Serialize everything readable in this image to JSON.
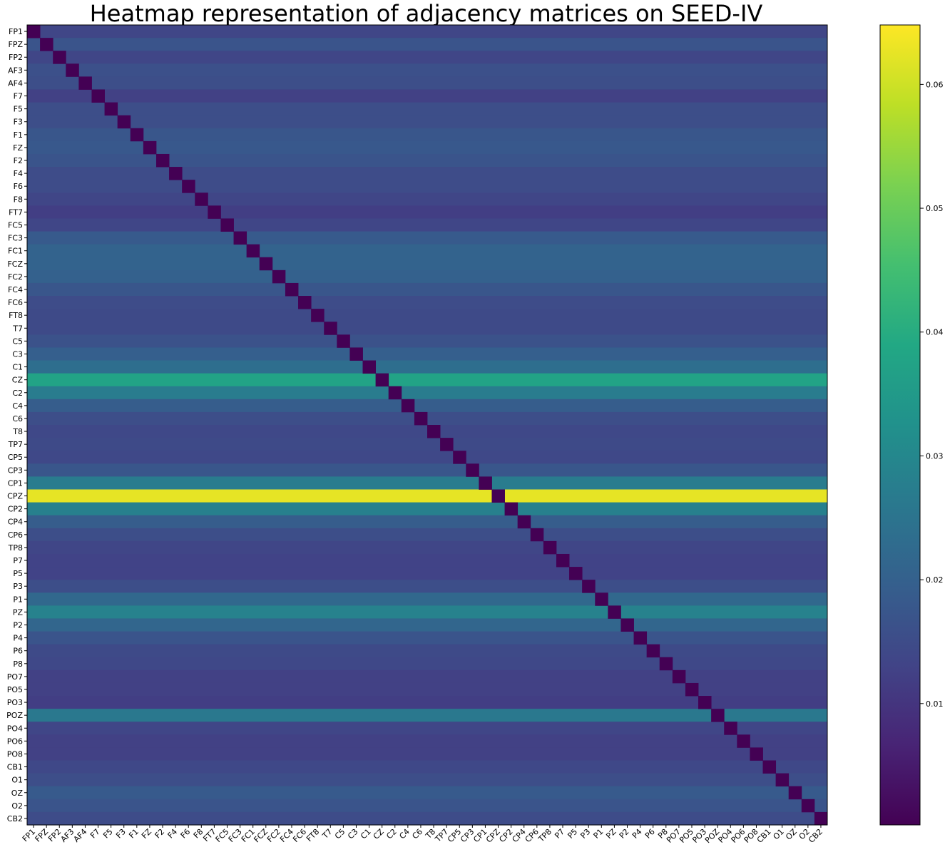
{
  "chart_data": {
    "type": "heatmap",
    "title": "Heatmap representation of adjacency matrices on SEED-IV",
    "xlabel": "",
    "ylabel": "",
    "labels": [
      "FP1",
      "FPZ",
      "FP2",
      "AF3",
      "AF4",
      "F7",
      "F5",
      "F3",
      "F1",
      "FZ",
      "F2",
      "F4",
      "F6",
      "F8",
      "FT7",
      "FC5",
      "FC3",
      "FC1",
      "FCZ",
      "FC2",
      "FC4",
      "FC6",
      "FT8",
      "T7",
      "C5",
      "C3",
      "C1",
      "CZ",
      "C2",
      "C4",
      "C6",
      "T8",
      "TP7",
      "CP5",
      "CP3",
      "CP1",
      "CPZ",
      "CP2",
      "CP4",
      "CP6",
      "TP8",
      "P7",
      "P5",
      "P3",
      "P1",
      "PZ",
      "P2",
      "P4",
      "P6",
      "P8",
      "PO7",
      "PO5",
      "PO3",
      "POZ",
      "PO4",
      "PO6",
      "PO8",
      "CB1",
      "O1",
      "OZ",
      "O2",
      "CB2"
    ],
    "row_values": [
      0.0135,
      0.017,
      0.0135,
      0.016,
      0.0155,
      0.0125,
      0.0155,
      0.0155,
      0.0175,
      0.018,
      0.017,
      0.015,
      0.015,
      0.0135,
      0.012,
      0.0135,
      0.0185,
      0.0205,
      0.0205,
      0.02,
      0.0175,
      0.015,
      0.0145,
      0.0145,
      0.0165,
      0.0195,
      0.0235,
      0.0375,
      0.027,
      0.019,
      0.0155,
      0.014,
      0.0145,
      0.014,
      0.0175,
      0.027,
      0.0625,
      0.028,
      0.019,
      0.0155,
      0.0135,
      0.013,
      0.013,
      0.0155,
      0.022,
      0.0285,
      0.0215,
      0.017,
      0.0145,
      0.014,
      0.0125,
      0.0125,
      0.012,
      0.026,
      0.0135,
      0.0125,
      0.0125,
      0.014,
      0.0155,
      0.0185,
      0.017,
      0.015
    ],
    "diagonal_value": 0.0,
    "colormap": "viridis",
    "colorbar": {
      "ticks": [
        0.01,
        0.02,
        0.03,
        0.04,
        0.05,
        0.06
      ],
      "tick_labels": [
        "0.01",
        "0.02",
        "0.03",
        "0.04",
        "0.05",
        "0.06"
      ],
      "vmin": 0.0002,
      "vmax": 0.0648
    },
    "grid": false
  }
}
